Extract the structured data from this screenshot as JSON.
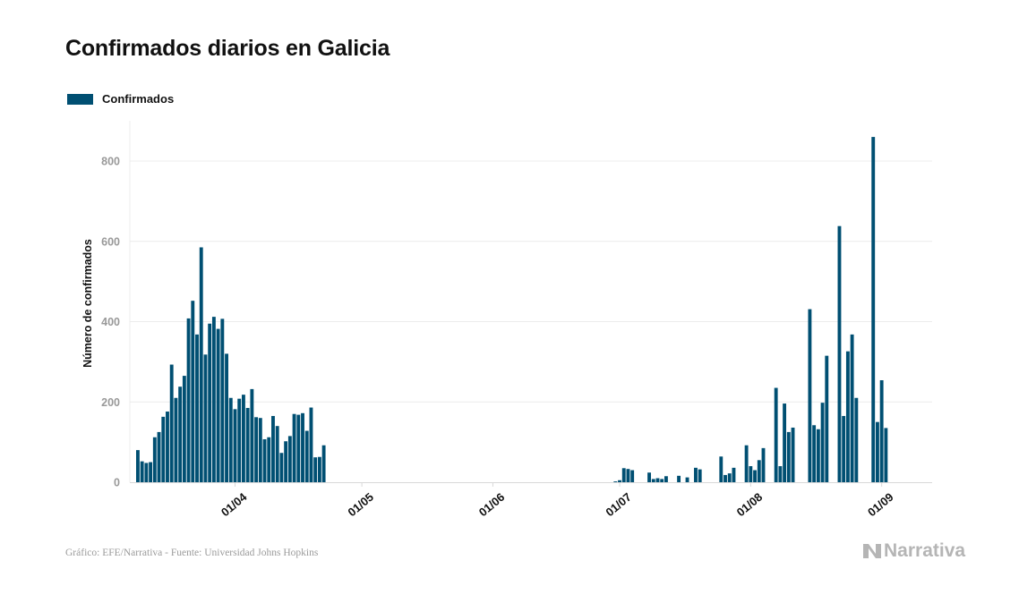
{
  "colors": {
    "bar": "#004f72",
    "grid": "#ececec",
    "axis_text": "#999999",
    "text": "#111111"
  },
  "chart_data": {
    "type": "bar",
    "title": "Confirmados diarios en Galicia",
    "ylabel": "Número de confirmados",
    "xlabel": "",
    "legend": {
      "position": "top-left",
      "entries": [
        "Confirmados"
      ]
    },
    "grid": true,
    "ylim": [
      0,
      900
    ],
    "yticks": [
      0,
      200,
      400,
      600,
      800
    ],
    "xlim": [
      "2020-03-01",
      "2020-09-10"
    ],
    "xticks": [
      {
        "date": "2020-04-01",
        "label": "01/04"
      },
      {
        "date": "2020-05-01",
        "label": "01/05"
      },
      {
        "date": "2020-06-01",
        "label": "01/06"
      },
      {
        "date": "2020-07-01",
        "label": "01/07"
      },
      {
        "date": "2020-08-01",
        "label": "01/08"
      },
      {
        "date": "2020-09-01",
        "label": "01/09"
      }
    ],
    "series": [
      {
        "name": "Confirmados",
        "x": [
          "2020-03-09",
          "2020-03-10",
          "2020-03-11",
          "2020-03-12",
          "2020-03-13",
          "2020-03-14",
          "2020-03-15",
          "2020-03-16",
          "2020-03-17",
          "2020-03-18",
          "2020-03-19",
          "2020-03-20",
          "2020-03-21",
          "2020-03-22",
          "2020-03-23",
          "2020-03-24",
          "2020-03-25",
          "2020-03-26",
          "2020-03-27",
          "2020-03-28",
          "2020-03-29",
          "2020-03-30",
          "2020-03-31",
          "2020-04-01",
          "2020-04-02",
          "2020-04-03",
          "2020-04-04",
          "2020-04-05",
          "2020-04-06",
          "2020-04-07",
          "2020-04-08",
          "2020-04-09",
          "2020-04-10",
          "2020-04-11",
          "2020-04-12",
          "2020-04-13",
          "2020-04-14",
          "2020-04-15",
          "2020-04-16",
          "2020-04-17",
          "2020-04-18",
          "2020-04-19",
          "2020-04-20",
          "2020-04-21",
          "2020-04-22",
          "2020-04-23",
          "2020-04-24",
          "2020-04-25",
          "2020-04-26",
          "2020-04-27",
          "2020-04-28",
          "2020-04-29",
          "2020-06-30",
          "2020-07-01",
          "2020-07-02",
          "2020-07-03",
          "2020-07-04",
          "2020-07-05",
          "2020-07-06",
          "2020-07-07",
          "2020-07-08",
          "2020-07-09",
          "2020-07-10",
          "2020-07-11",
          "2020-07-12",
          "2020-07-13",
          "2020-07-14",
          "2020-07-15",
          "2020-07-16",
          "2020-07-17",
          "2020-07-18",
          "2020-07-19",
          "2020-07-20",
          "2020-07-21",
          "2020-07-22",
          "2020-07-23",
          "2020-07-24",
          "2020-07-25",
          "2020-07-26",
          "2020-07-27",
          "2020-07-28",
          "2020-07-29",
          "2020-07-30",
          "2020-07-31",
          "2020-08-01",
          "2020-08-02",
          "2020-08-03",
          "2020-08-04",
          "2020-08-05",
          "2020-08-06",
          "2020-08-07",
          "2020-08-08",
          "2020-08-09",
          "2020-08-10",
          "2020-08-11",
          "2020-08-12",
          "2020-08-13",
          "2020-08-14",
          "2020-08-15",
          "2020-08-16",
          "2020-08-17",
          "2020-08-18",
          "2020-08-19",
          "2020-08-20",
          "2020-08-21",
          "2020-08-22",
          "2020-08-23",
          "2020-08-24",
          "2020-08-25",
          "2020-08-26",
          "2020-08-27",
          "2020-08-28",
          "2020-08-29",
          "2020-08-30",
          "2020-08-31",
          "2020-09-01",
          "2020-09-02",
          "2020-09-03",
          "2020-09-04"
        ],
        "values": [
          80,
          52,
          48,
          50,
          112,
          125,
          163,
          176,
          293,
          210,
          238,
          265,
          408,
          452,
          368,
          585,
          318,
          395,
          412,
          382,
          407,
          320,
          210,
          182,
          208,
          218,
          185,
          232,
          162,
          160,
          107,
          112,
          165,
          140,
          73,
          102,
          115,
          170,
          168,
          172,
          128,
          186,
          62,
          63,
          92,
          0,
          0,
          0,
          0,
          0,
          0,
          0,
          2,
          5,
          35,
          33,
          30,
          0,
          0,
          0,
          24,
          8,
          10,
          8,
          15,
          0,
          0,
          16,
          0,
          12,
          0,
          36,
          32,
          0,
          0,
          0,
          0,
          64,
          18,
          22,
          36,
          0,
          0,
          92,
          40,
          30,
          55,
          85,
          0,
          0,
          235,
          40,
          196,
          125,
          136,
          0,
          0,
          0,
          431,
          142,
          132,
          198,
          315,
          0,
          0,
          638,
          165,
          326,
          368,
          210,
          0,
          0,
          0,
          860,
          150,
          254,
          135,
          0,
          0
        ]
      }
    ]
  }
}
